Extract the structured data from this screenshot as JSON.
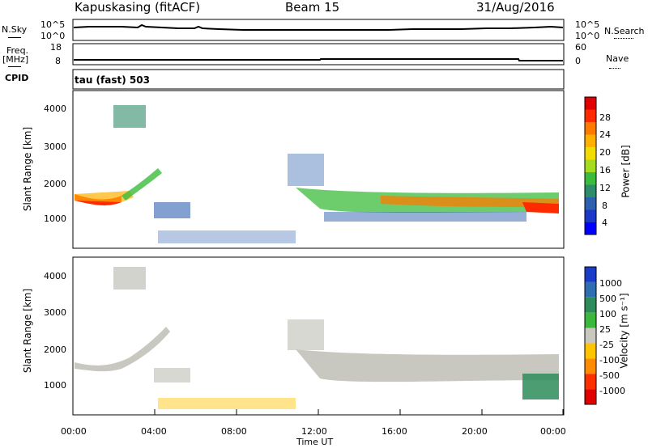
{
  "header": {
    "station": "Kapuskasing (fitACF)",
    "beam": "Beam 15",
    "date": "31/Aug/2016"
  },
  "panels": {
    "nsky_label": "N.Sky",
    "nsky_ticks": [
      "10^5",
      "10^0"
    ],
    "nsearch_label": "N.Search",
    "nsearch_ticks": [
      "10^5",
      "10^0"
    ],
    "freq_label_1": "Freq.",
    "freq_label_2": "[MHz]",
    "freq_ticks": [
      "18",
      "8"
    ],
    "nave_label": "Nave",
    "nave_ticks": [
      "60",
      "0"
    ],
    "cpid_label": "CPID",
    "cpid_text": "tau (fast) 503"
  },
  "chart_data": [
    {
      "type": "heatmap",
      "name": "power",
      "ylabel": "Slant Range [km]",
      "yticks": [
        "4000",
        "3000",
        "2000",
        "1000"
      ],
      "colorbar_label": "Power [dB]",
      "colorbar_ticks": [
        "28",
        "24",
        "20",
        "16",
        "12",
        "8",
        "4"
      ],
      "colorbar_colors": [
        "#e00000",
        "#ff2a00",
        "#ff7a00",
        "#ffb000",
        "#f2dc00",
        "#a6dc20",
        "#3cbc3c",
        "#2e8c6a",
        "#2e60b0",
        "#1c38c8",
        "#0000ff"
      ]
    },
    {
      "type": "heatmap",
      "name": "velocity",
      "ylabel": "Slant Range [km]",
      "yticks": [
        "4000",
        "3000",
        "2000",
        "1000"
      ],
      "colorbar_label": "Velocity [m s⁻¹]",
      "colorbar_ticks": [
        "1000",
        "500",
        "100",
        "25",
        "-25",
        "-100",
        "-500",
        "-1000"
      ],
      "colorbar_colors": [
        "#1a3cc8",
        "#2f6eb0",
        "#2e8c5a",
        "#3cb83c",
        "#c8c8c0",
        "#ffc400",
        "#ff8c00",
        "#ff3000",
        "#e00000"
      ]
    }
  ],
  "xaxis": {
    "label": "Time UT",
    "ticks": [
      "00:00",
      "04:00",
      "08:00",
      "12:00",
      "16:00",
      "20:00",
      "00:00"
    ]
  }
}
